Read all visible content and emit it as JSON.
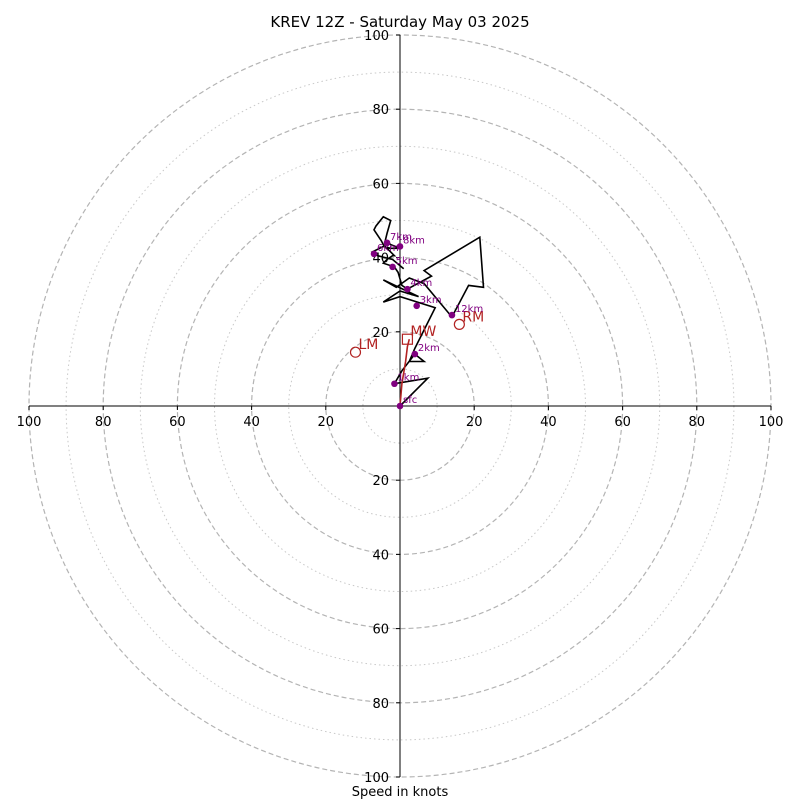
{
  "chart_data": {
    "type": "line",
    "title": "KREV 12Z - Saturday May 03 2025",
    "xlabel": "Speed in knots",
    "ylabel": "",
    "xlim": [
      -100,
      100
    ],
    "ylim": [
      -100,
      100
    ],
    "x_tick_labels": [
      "100",
      "80",
      "60",
      "40",
      "20",
      "",
      "20",
      "40",
      "60",
      "80",
      "100"
    ],
    "y_tick_labels": [
      "100",
      "80",
      "60",
      "40",
      "20",
      "",
      "20",
      "40",
      "60",
      "80",
      "100"
    ],
    "tick_values": [
      -100,
      -80,
      -60,
      -40,
      -20,
      0,
      20,
      40,
      60,
      80,
      100
    ],
    "rings": {
      "major": [
        20,
        40,
        60,
        80,
        100
      ],
      "minor": [
        10,
        30,
        50,
        70,
        90
      ],
      "major_style": "dashed",
      "minor_style": "dotted"
    },
    "hodograph": {
      "color": "#000000",
      "x": [
        0,
        7.5,
        -1.5,
        0.5,
        4,
        6.5,
        2.5,
        4,
        9.5,
        0,
        -4.5,
        0,
        5,
        -4.5,
        -1,
        2.5,
        6.5,
        14,
        18.5,
        22.5,
        21.5,
        6.5,
        8.5,
        2,
        0.5,
        -0.5,
        -1.5,
        -4.5,
        -3.5,
        -2,
        -1.5,
        -4.5,
        -5,
        -7,
        -6.5,
        -4.5,
        -2.5,
        -3.5,
        -4,
        -2.5,
        0,
        -2.5,
        -4.5,
        -7.5,
        -6,
        -2,
        1
      ],
      "y": [
        0,
        7.5,
        6,
        9.5,
        14,
        12,
        12,
        15.5,
        26.5,
        29.5,
        28,
        31,
        29.5,
        34,
        32,
        34.5,
        33,
        24,
        32.5,
        32,
        45.5,
        36.5,
        35,
        31.5,
        32.5,
        36,
        37.5,
        38.5,
        39.5,
        40.5,
        40.5,
        43.5,
        44.5,
        47.5,
        48.5,
        51,
        50,
        46.5,
        44.5,
        43.5,
        42.5,
        42.5,
        43,
        41.5,
        40.5,
        39.5,
        37
      ]
    },
    "height_markers": [
      {
        "label": "sfc",
        "x": 0,
        "y": 0
      },
      {
        "label": "1km",
        "x": -1.5,
        "y": 6
      },
      {
        "label": "2km",
        "x": 4,
        "y": 14
      },
      {
        "label": "3km",
        "x": 4.5,
        "y": 27
      },
      {
        "label": "4km",
        "x": 2,
        "y": 31.5
      },
      {
        "label": "5km",
        "x": -2,
        "y": 37.5
      },
      {
        "label": "6km",
        "x": -7,
        "y": 41
      },
      {
        "label": "7km",
        "x": -3.5,
        "y": 44
      },
      {
        "label": "8km",
        "x": 0,
        "y": 43
      },
      {
        "label": "12km",
        "x": 14,
        "y": 24.5
      }
    ],
    "marker_color": "#800080",
    "storm_motion": {
      "color": "#b22222",
      "RM": {
        "label": "RM",
        "x": 16,
        "y": 22
      },
      "LM": {
        "label": "LM",
        "x": -12,
        "y": 14.5
      },
      "MW": {
        "label": "MW",
        "x": 2,
        "y": 18
      },
      "mean_wind_path": {
        "x": [
          0,
          0.5,
          1.5,
          2,
          2.5
        ],
        "y": [
          0,
          6,
          12,
          16,
          18
        ]
      }
    },
    "grid": true,
    "legend": "none"
  }
}
